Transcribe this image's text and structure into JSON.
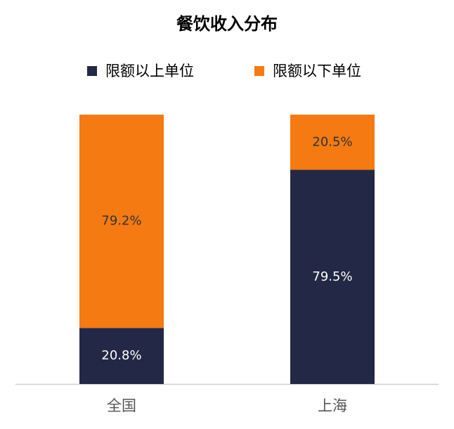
{
  "chart_data": {
    "type": "stacked-bar",
    "title": "餐饮收入分布",
    "categories": [
      "全国",
      "上海"
    ],
    "series": [
      {
        "name": "限额以上单位",
        "color": "#222845",
        "values": [
          20.8,
          79.5
        ],
        "value_labels": [
          "20.8%",
          "79.5%"
        ]
      },
      {
        "name": "限额以下单位",
        "color": "#f47a11",
        "values": [
          79.2,
          20.5
        ],
        "value_labels": [
          "79.2%",
          "20.5%"
        ]
      }
    ],
    "ylim": [
      0,
      100
    ],
    "legend": "top"
  }
}
